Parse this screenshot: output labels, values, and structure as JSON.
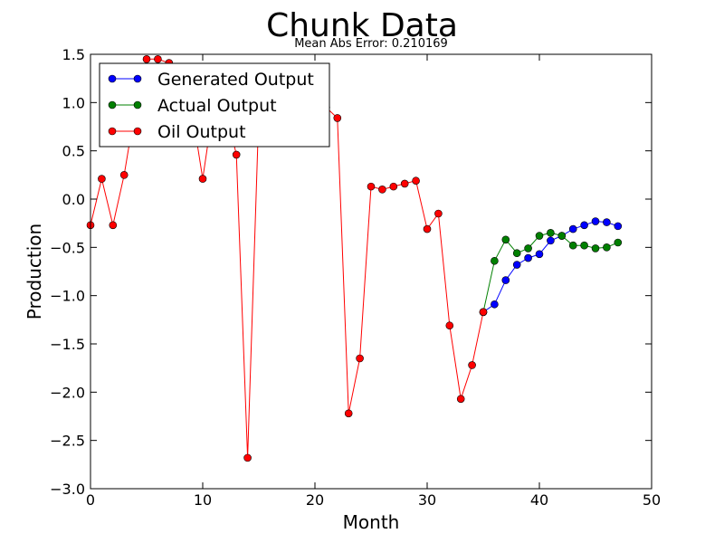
{
  "chart_data": {
    "type": "line",
    "title": "Chunk Data",
    "subtitle": "Mean Abs Error: 0.210169",
    "xlabel": "Month",
    "ylabel": "Production",
    "xlim": [
      0,
      50
    ],
    "ylim": [
      -3.0,
      1.5
    ],
    "xticks": [
      "0",
      "10",
      "20",
      "30",
      "40",
      "50"
    ],
    "yticks": [
      "1.5",
      "1.0",
      "0.5",
      "0.0",
      "−0.5",
      "−1.0",
      "−1.5",
      "−2.0",
      "−2.5",
      "−3.0"
    ],
    "grid": false,
    "legend_position": "top-left",
    "series": [
      {
        "name": "Generated Output",
        "color": "#0000ff",
        "x": [
          35,
          36,
          37,
          38,
          39,
          40,
          41,
          42,
          43,
          44,
          45,
          46,
          47
        ],
        "y": [
          -1.17,
          -1.09,
          -0.84,
          -0.68,
          -0.61,
          -0.57,
          -0.43,
          -0.38,
          -0.31,
          -0.27,
          -0.23,
          -0.24,
          -0.28
        ]
      },
      {
        "name": "Actual Output",
        "color": "#008000",
        "x": [
          35,
          36,
          37,
          38,
          39,
          40,
          41,
          42,
          43,
          44,
          45,
          46,
          47
        ],
        "y": [
          -1.17,
          -0.64,
          -0.42,
          -0.56,
          -0.51,
          -0.38,
          -0.35,
          -0.38,
          -0.48,
          -0.48,
          -0.51,
          -0.5,
          -0.45
        ]
      },
      {
        "name": "Oil Output",
        "color": "#ff0000",
        "x": [
          0,
          1,
          2,
          3,
          4,
          5,
          6,
          7,
          8,
          9,
          10,
          11,
          12,
          13,
          14,
          15,
          16,
          17,
          18,
          19,
          20,
          21,
          22,
          23,
          24,
          25,
          26,
          27,
          28,
          29,
          30,
          31,
          32,
          33,
          34,
          35
        ],
        "y": [
          -0.27,
          0.21,
          -0.27,
          0.25,
          0.95,
          1.45,
          1.45,
          1.41,
          1.1,
          0.95,
          0.21,
          1.0,
          0.95,
          0.46,
          -2.68,
          0.9,
          0.95,
          0.95,
          0.95,
          0.95,
          0.95,
          0.95,
          0.84,
          -2.22,
          -1.65,
          0.13,
          0.1,
          0.13,
          0.16,
          0.19,
          -0.31,
          -0.15,
          -1.31,
          -2.07,
          -1.72,
          -1.17
        ]
      }
    ]
  }
}
